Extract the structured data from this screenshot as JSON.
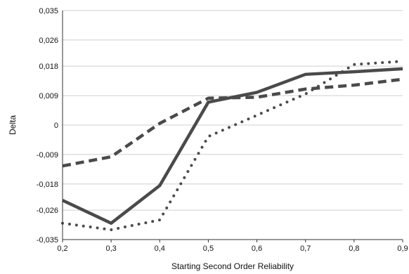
{
  "chart_data": {
    "type": "line",
    "xlabel": "Starting Second Order Reliability",
    "ylabel": "Delta",
    "xlim": [
      0.2,
      0.9
    ],
    "ylim": [
      -0.035,
      0.035
    ],
    "grid": "horizontal",
    "legend": "none",
    "x_ticks": [
      "0,2",
      "0,3",
      "0,4",
      "0,5",
      "0,6",
      "0,7",
      "0,8",
      "0,9"
    ],
    "y_ticks": [
      "0,035",
      "0,026",
      "0,018",
      "0,009",
      "0",
      "-0,009",
      "-0,018",
      "-0,026",
      "-0,035"
    ],
    "y_tick_values": [
      0.035,
      0.026,
      0.018,
      0.009,
      0,
      -0.009,
      -0.018,
      -0.026,
      -0.035
    ],
    "x_tick_values": [
      0.2,
      0.3,
      0.4,
      0.5,
      0.6,
      0.7,
      0.8,
      0.9
    ],
    "series": [
      {
        "style": "solid",
        "color": "#4a4a4a",
        "x": [
          0.2,
          0.3,
          0.4,
          0.5,
          0.6,
          0.7,
          0.8,
          0.9
        ],
        "values": [
          -0.023,
          -0.03,
          -0.0185,
          0.007,
          0.01,
          0.0155,
          0.0163,
          0.0172
        ]
      },
      {
        "style": "dashed",
        "color": "#4a4a4a",
        "x": [
          0.2,
          0.3,
          0.4,
          0.5,
          0.6,
          0.7,
          0.8,
          0.9
        ],
        "values": [
          -0.0125,
          -0.0097,
          0.0005,
          0.0082,
          0.0085,
          0.011,
          0.0122,
          0.014
        ]
      },
      {
        "style": "dotted",
        "color": "#4a4a4a",
        "x": [
          0.2,
          0.3,
          0.4,
          0.5,
          0.6,
          0.7,
          0.8,
          0.9
        ],
        "values": [
          -0.03,
          -0.032,
          -0.029,
          -0.0035,
          0.003,
          0.0095,
          0.0185,
          0.0195
        ]
      }
    ]
  }
}
